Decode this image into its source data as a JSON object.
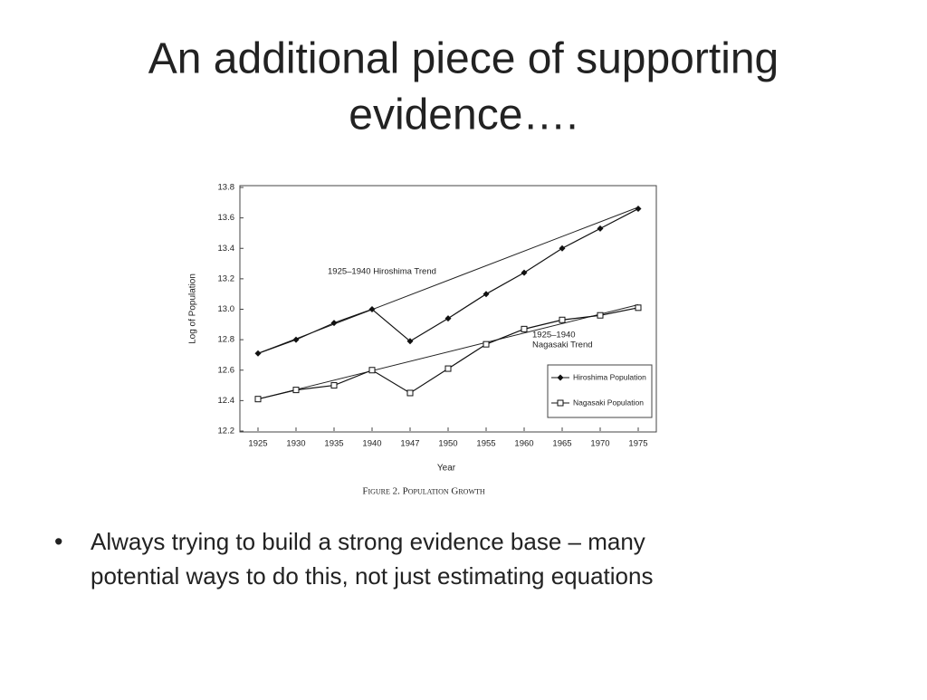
{
  "slide": {
    "title_lines": [
      "An additional piece of supporting",
      "evidence…."
    ],
    "bullets": [
      [
        "Always trying to build a strong evidence base – many",
        "potential ways to do this, not just estimating equations"
      ]
    ]
  },
  "chart_data": {
    "type": "line",
    "caption": "Figure 2. Population Growth",
    "x_label": "Year",
    "y_label": "Log of Population",
    "categories": [
      "1925",
      "1930",
      "1935",
      "1940",
      "1947",
      "1950",
      "1955",
      "1960",
      "1965",
      "1970",
      "1975"
    ],
    "series": [
      {
        "name": "Hiroshima Population",
        "color": "#111",
        "marker": "diamond",
        "values": [
          12.71,
          12.8,
          12.91,
          13.0,
          12.79,
          12.94,
          13.1,
          13.24,
          13.4,
          13.53,
          13.66
        ]
      },
      {
        "name": "Nagasaki Population",
        "color": "#111",
        "marker": "square",
        "values": [
          12.41,
          12.47,
          12.5,
          12.6,
          12.45,
          12.61,
          12.77,
          12.87,
          12.93,
          12.96,
          13.01
        ]
      }
    ],
    "trend_lines": [
      {
        "label_lines": [
          "1925–1940 Hiroshima Trend"
        ],
        "start": 12.71,
        "end": 13.67
      },
      {
        "label_lines": [
          "1925–1940",
          "Nagasaki Trend"
        ],
        "start": 12.41,
        "end": 13.03
      }
    ],
    "ylim": [
      12.2,
      13.8
    ],
    "yticks": [
      12.2,
      12.4,
      12.6,
      12.8,
      {
        "value": 13,
        "label": "13.0"
      },
      13.2,
      13.4,
      13.6,
      13.8
    ],
    "legend": "lower right",
    "grid": false
  }
}
